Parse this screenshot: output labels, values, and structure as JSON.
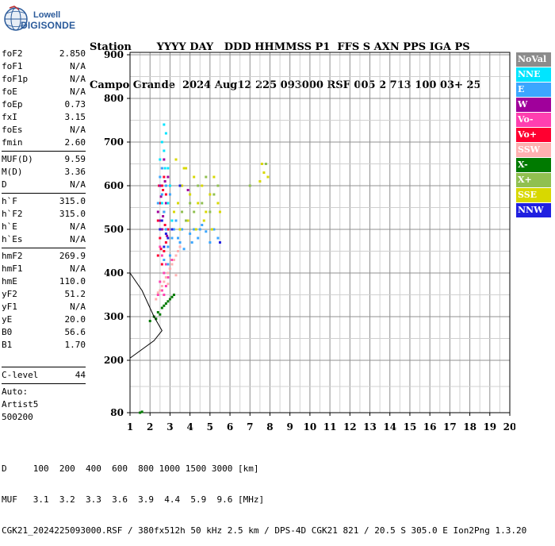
{
  "logo": {
    "line1": "Lowell",
    "line2": "DIGISONDE"
  },
  "header": {
    "labels_row": "Station       YYYY DAY   DDD HHMMSS P1  FFS S AXN PPS IGA PS",
    "values_row": "Campo Grande  2024 Aug12 225 093000 RSF 005 2 713 100 03+ 25"
  },
  "params": {
    "group1": [
      {
        "k": "foF2",
        "v": "2.850"
      },
      {
        "k": "foF1",
        "v": "N/A"
      },
      {
        "k": "foF1p",
        "v": "N/A"
      },
      {
        "k": "foE",
        "v": "N/A"
      },
      {
        "k": "foEp",
        "v": "0.73"
      },
      {
        "k": "fxI",
        "v": "3.15"
      },
      {
        "k": "foEs",
        "v": "N/A"
      },
      {
        "k": "fmin",
        "v": "2.60"
      }
    ],
    "group2": [
      {
        "k": "MUF(D)",
        "v": "9.59"
      },
      {
        "k": "M(D)",
        "v": "3.36"
      },
      {
        "k": "D",
        "v": "N/A"
      }
    ],
    "group3": [
      {
        "k": "h`F",
        "v": "315.0"
      },
      {
        "k": "h`F2",
        "v": "315.0"
      },
      {
        "k": "h`E",
        "v": "N/A"
      },
      {
        "k": "h`Es",
        "v": "N/A"
      }
    ],
    "group4": [
      {
        "k": "hmF2",
        "v": "269.9"
      },
      {
        "k": "hmF1",
        "v": "N/A"
      },
      {
        "k": "hmE",
        "v": "110.0"
      },
      {
        "k": "yF2",
        "v": "51.2"
      },
      {
        "k": "yF1",
        "v": "N/A"
      },
      {
        "k": "yE",
        "v": "20.0"
      },
      {
        "k": "B0",
        "v": "56.6"
      },
      {
        "k": "B1",
        "v": "1.70"
      }
    ],
    "clevel": {
      "k": "C-level",
      "v": "44"
    }
  },
  "auto": {
    "line1": "Auto:",
    "line2": "Artist5",
    "line3": "500200"
  },
  "legend": [
    {
      "label": "NoVal",
      "color": "#8c8c8c"
    },
    {
      "label": "NNE",
      "color": "#00e5ff"
    },
    {
      "label": "E",
      "color": "#3ba6ff"
    },
    {
      "label": "W",
      "color": "#a0009b"
    },
    {
      "label": "Vo-",
      "color": "#ff3fb0"
    },
    {
      "label": "Vo+",
      "color": "#ff0030"
    },
    {
      "label": "SSW",
      "color": "#ffb0b0"
    },
    {
      "label": "X-",
      "color": "#007a00"
    },
    {
      "label": "X+",
      "color": "#90c050"
    },
    {
      "label": "SSE",
      "color": "#d8d800"
    },
    {
      "label": "NNW",
      "color": "#2020e0"
    }
  ],
  "chart_data": {
    "type": "scatter",
    "x_ticks": [
      "1",
      "2",
      "3",
      "4",
      "5",
      "6",
      "7",
      "8",
      "9",
      "10",
      "11",
      "12",
      "13",
      "14",
      "15",
      "16",
      "17",
      "18",
      "19",
      "20"
    ],
    "y_ticks": [
      "80",
      "200",
      "300",
      "400",
      "500",
      "600",
      "700",
      "800",
      "900"
    ],
    "xlim": [
      1,
      20
    ],
    "ylim": [
      80,
      900
    ],
    "grid": true,
    "clusters": [
      {
        "series": "Vo+",
        "points": [
          [
            2.4,
            520
          ],
          [
            2.5,
            560
          ],
          [
            2.6,
            600
          ],
          [
            2.7,
            540
          ],
          [
            2.8,
            580
          ],
          [
            2.6,
            640
          ],
          [
            2.5,
            480
          ],
          [
            2.9,
            500
          ],
          [
            2.7,
            620
          ],
          [
            2.55,
            455
          ],
          [
            2.65,
            590
          ],
          [
            2.75,
            510
          ],
          [
            2.85,
            560
          ],
          [
            2.45,
            600
          ],
          [
            2.6,
            420
          ],
          [
            2.7,
            450
          ],
          [
            2.4,
            440
          ],
          [
            2.8,
            470
          ]
        ]
      },
      {
        "series": "W",
        "points": [
          [
            2.4,
            540
          ],
          [
            2.5,
            600
          ],
          [
            2.6,
            500
          ],
          [
            2.7,
            660
          ],
          [
            2.8,
            560
          ],
          [
            2.5,
            520
          ],
          [
            2.9,
            620
          ],
          [
            3.9,
            590
          ],
          [
            2.65,
            530
          ],
          [
            2.75,
            610
          ],
          [
            2.55,
            575
          ],
          [
            2.85,
            485
          ]
        ]
      },
      {
        "series": "Vo-",
        "points": [
          [
            2.5,
            380
          ],
          [
            2.6,
            360
          ],
          [
            2.7,
            400
          ],
          [
            2.8,
            420
          ],
          [
            2.6,
            440
          ],
          [
            2.4,
            350
          ],
          [
            2.9,
            390
          ],
          [
            3.0,
            410
          ],
          [
            2.5,
            460
          ],
          [
            2.7,
            350
          ],
          [
            2.8,
            370
          ],
          [
            3.1,
            430
          ]
        ]
      },
      {
        "series": "SSW",
        "points": [
          [
            2.3,
            340
          ],
          [
            2.5,
            360
          ],
          [
            2.7,
            380
          ],
          [
            2.9,
            400
          ],
          [
            3.1,
            420
          ],
          [
            3.3,
            440
          ],
          [
            3.5,
            460
          ],
          [
            2.6,
            370
          ],
          [
            2.8,
            390
          ],
          [
            3.0,
            410
          ],
          [
            3.2,
            430
          ],
          [
            3.4,
            450
          ],
          [
            2.4,
            355
          ],
          [
            2.9,
            375
          ],
          [
            3.3,
            395
          ]
        ]
      },
      {
        "series": "NNE",
        "points": [
          [
            2.6,
            700
          ],
          [
            2.7,
            680
          ],
          [
            2.8,
            720
          ],
          [
            2.5,
            660
          ],
          [
            2.9,
            640
          ],
          [
            3.0,
            600
          ],
          [
            2.7,
            740
          ],
          [
            2.8,
            600
          ],
          [
            2.6,
            560
          ],
          [
            3.1,
            520
          ],
          [
            2.9,
            560
          ],
          [
            2.75,
            640
          ]
        ]
      },
      {
        "series": "E",
        "points": [
          [
            2.5,
            620
          ],
          [
            2.6,
            580
          ],
          [
            2.7,
            540
          ],
          [
            2.8,
            500
          ],
          [
            2.9,
            460
          ],
          [
            3.0,
            440
          ],
          [
            3.1,
            480
          ],
          [
            3.2,
            500
          ],
          [
            3.4,
            480
          ],
          [
            3.6,
            500
          ],
          [
            3.8,
            520
          ],
          [
            4.0,
            490
          ],
          [
            4.2,
            500
          ],
          [
            4.4,
            480
          ],
          [
            4.6,
            510
          ],
          [
            4.8,
            495
          ],
          [
            5.0,
            470
          ],
          [
            5.2,
            500
          ],
          [
            5.4,
            480
          ],
          [
            2.4,
            560
          ],
          [
            2.6,
            640
          ],
          [
            2.8,
            600
          ],
          [
            3.0,
            580
          ],
          [
            3.3,
            520
          ],
          [
            3.5,
            470
          ],
          [
            3.7,
            455
          ],
          [
            4.1,
            470
          ],
          [
            4.5,
            500
          ],
          [
            2.7,
            430
          ],
          [
            2.9,
            420
          ]
        ]
      },
      {
        "series": "SSE",
        "points": [
          [
            3.2,
            540
          ],
          [
            3.4,
            560
          ],
          [
            3.6,
            600
          ],
          [
            3.8,
            640
          ],
          [
            4.0,
            580
          ],
          [
            4.2,
            620
          ],
          [
            4.4,
            560
          ],
          [
            4.6,
            600
          ],
          [
            4.8,
            540
          ],
          [
            5.0,
            580
          ],
          [
            5.2,
            620
          ],
          [
            5.4,
            560
          ],
          [
            3.5,
            500
          ],
          [
            3.9,
            520
          ],
          [
            4.3,
            500
          ],
          [
            4.7,
            520
          ],
          [
            5.1,
            500
          ],
          [
            5.5,
            540
          ],
          [
            7.6,
            650
          ],
          [
            7.7,
            630
          ],
          [
            7.5,
            610
          ],
          [
            7.9,
            620
          ],
          [
            3.3,
            660
          ],
          [
            3.7,
            640
          ]
        ]
      },
      {
        "series": "X+",
        "points": [
          [
            3.6,
            540
          ],
          [
            3.8,
            520
          ],
          [
            4.0,
            560
          ],
          [
            4.2,
            540
          ],
          [
            4.4,
            600
          ],
          [
            4.6,
            560
          ],
          [
            4.8,
            620
          ],
          [
            5.0,
            540
          ],
          [
            5.2,
            580
          ],
          [
            5.4,
            600
          ],
          [
            7.0,
            600
          ],
          [
            7.8,
            650
          ]
        ]
      },
      {
        "series": "X-",
        "points": [
          [
            2.0,
            290
          ],
          [
            2.2,
            300
          ],
          [
            2.4,
            310
          ],
          [
            2.6,
            320
          ],
          [
            2.8,
            330
          ],
          [
            3.0,
            340
          ],
          [
            3.2,
            350
          ],
          [
            2.5,
            305
          ],
          [
            2.7,
            325
          ],
          [
            2.9,
            335
          ],
          [
            3.1,
            345
          ],
          [
            2.3,
            295
          ],
          [
            1.5,
            80
          ],
          [
            1.6,
            82
          ]
        ]
      },
      {
        "series": "NNW",
        "points": [
          [
            2.5,
            500
          ],
          [
            2.7,
            460
          ],
          [
            2.9,
            480
          ],
          [
            3.1,
            500
          ],
          [
            5.5,
            470
          ],
          [
            3.5,
            600
          ],
          [
            2.6,
            520
          ],
          [
            2.8,
            490
          ]
        ]
      }
    ],
    "profile_curve": [
      [
        1.0,
        400
      ],
      [
        1.3,
        380
      ],
      [
        1.6,
        360
      ],
      [
        1.9,
        330
      ],
      [
        2.2,
        300
      ],
      [
        2.45,
        280
      ],
      [
        2.6,
        268
      ],
      [
        2.2,
        245
      ],
      [
        1.6,
        225
      ],
      [
        1.0,
        205
      ]
    ],
    "profile_color": "#000000"
  },
  "footer": {
    "row1": "D     100  200  400  600  800 1000 1500 3000 [km]",
    "row2": "MUF   3.1  3.2  3.3  3.6  3.9  4.4  5.9  9.6 [MHz]",
    "row3": "CGK21_2024225093000.RSF / 380fx512h 50 kHz 2.5 km / DPS-4D CGK21 821 / 20.5 S 305.0 E Ion2Png 1.3.20"
  }
}
